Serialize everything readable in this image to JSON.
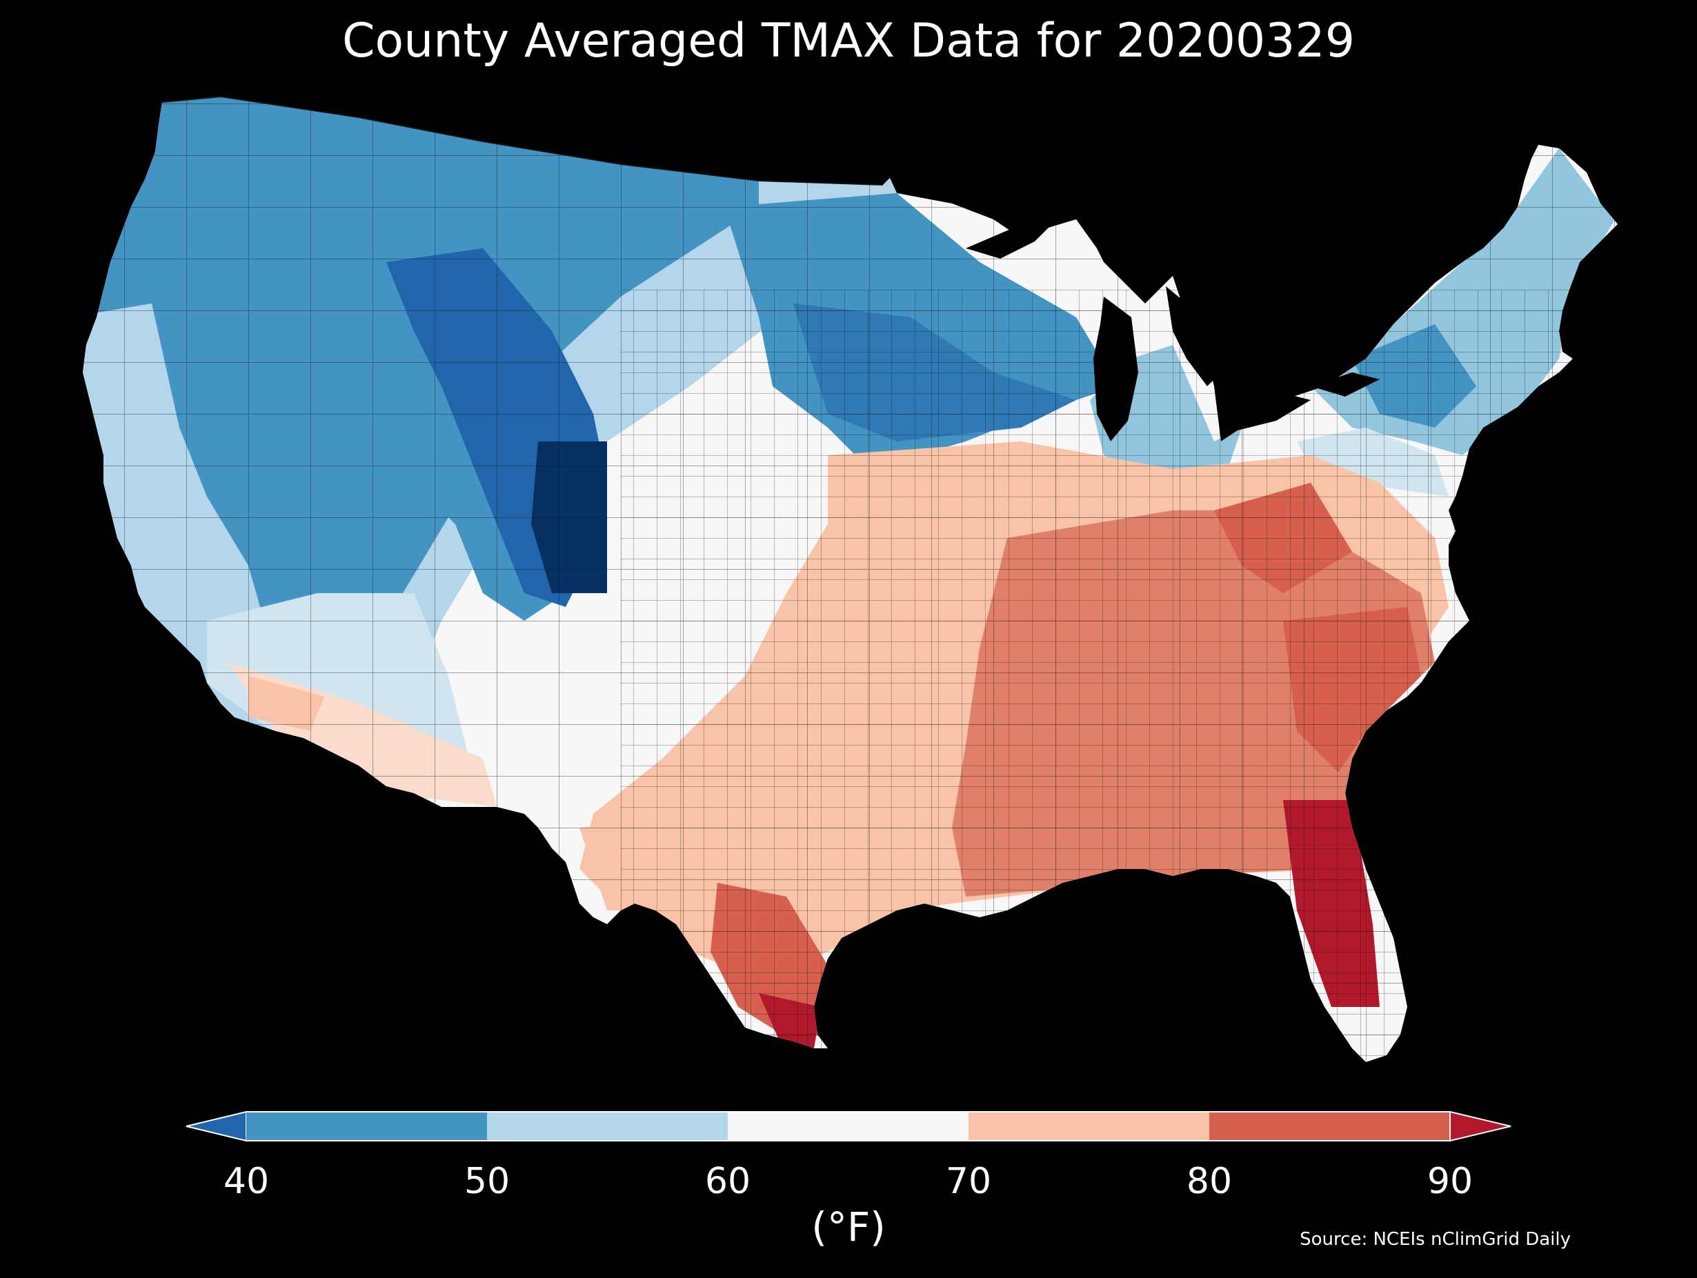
{
  "title": "County Averaged TMAX Data for 20200329",
  "colorbar": {
    "ticks": [
      "40",
      "50",
      "60",
      "70",
      "80",
      "90"
    ],
    "unit_label": "(°F)",
    "bins": [
      {
        "range": "<40",
        "color": "#2166ac"
      },
      {
        "range": "40-50",
        "color": "#4393c3"
      },
      {
        "range": "50-60",
        "color": "#b4d6ea"
      },
      {
        "range": "60-70",
        "color": "#f7f7f7"
      },
      {
        "range": "70-80",
        "color": "#f8c3a6"
      },
      {
        "range": "80-90",
        "color": "#d6604d"
      },
      {
        "range": ">90",
        "color": "#b2182b"
      }
    ]
  },
  "source": "Source: NCEIs nClimGrid Daily",
  "colors": {
    "background": "#000000",
    "text": "#ffffff",
    "county_border": "#222222"
  }
}
